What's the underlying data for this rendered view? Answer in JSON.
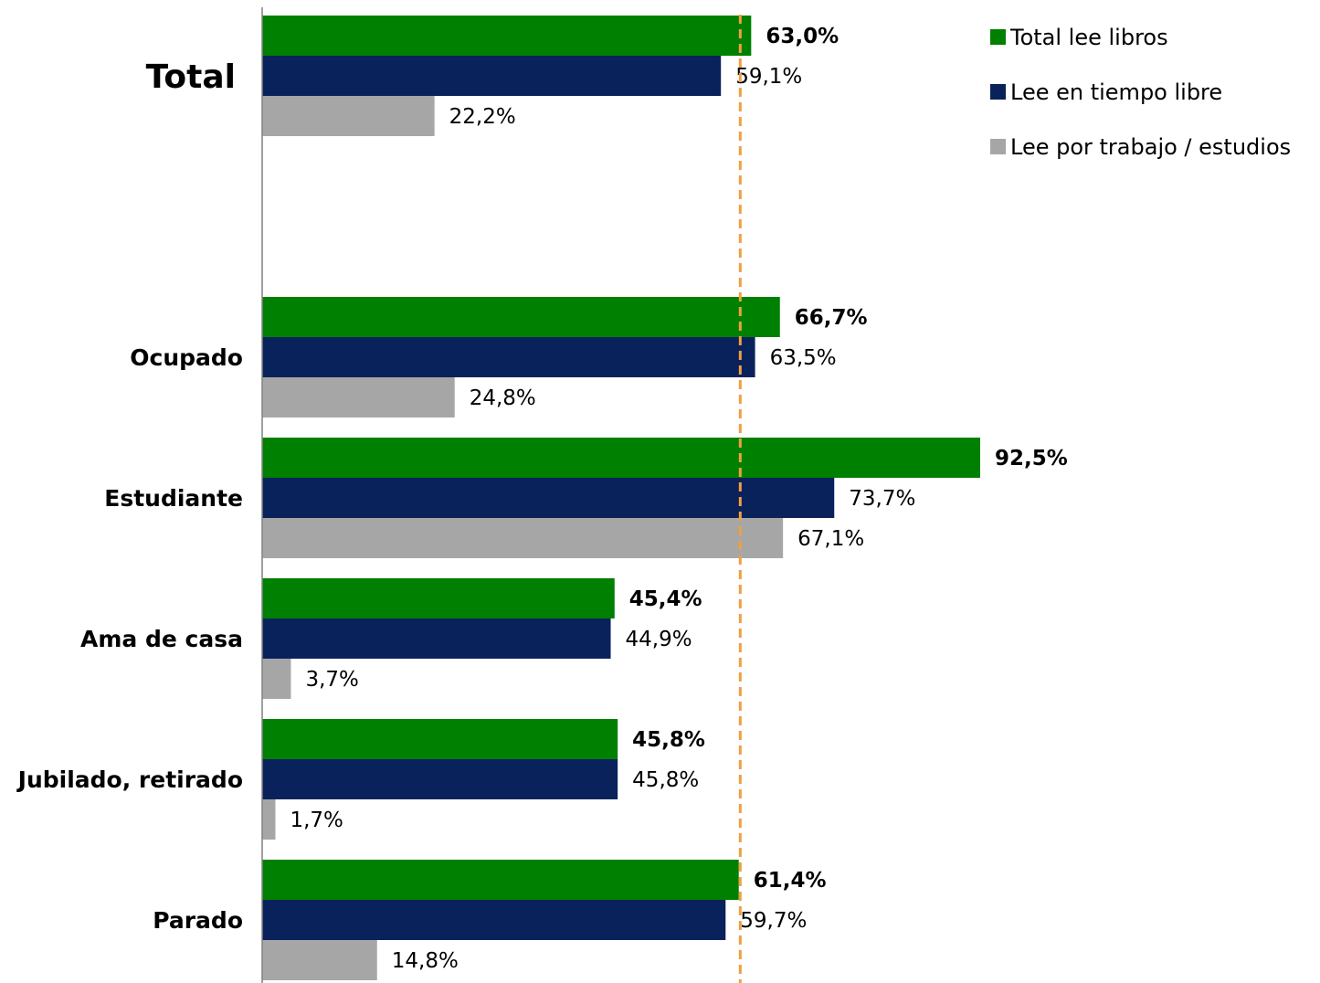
{
  "chart_data": {
    "type": "bar",
    "orientation": "horizontal",
    "categories": [
      "Total",
      "Ocupado",
      "Estudiante",
      "Ama de casa",
      "Jubilado, retirado",
      "Parado"
    ],
    "series": [
      {
        "name": "Total lee libros",
        "color": "#008000",
        "values": [
          63.0,
          66.7,
          92.5,
          45.4,
          45.8,
          61.4
        ],
        "labels": [
          "63,0%",
          "66,7%",
          "92,5%",
          "45,4%",
          "45,8%",
          "61,4%"
        ]
      },
      {
        "name": "Lee en tiempo libre",
        "color": "#0a225c",
        "values": [
          59.1,
          63.5,
          73.7,
          44.9,
          45.8,
          59.7
        ],
        "labels": [
          "59,1%",
          "63,5%",
          "73,7%",
          "44,9%",
          "45,8%",
          "59,7%"
        ]
      },
      {
        "name": "Lee por trabajo / estudios",
        "color": "#a6a6a6",
        "values": [
          22.2,
          24.8,
          67.1,
          3.7,
          1.7,
          14.8
        ],
        "labels": [
          "22,2%",
          "24,8%",
          "67,1%",
          "3,7%",
          "1,7%",
          "14,8%"
        ]
      }
    ],
    "reference_line": {
      "value": 63.0,
      "color": "#f0a040",
      "style": "dashed"
    },
    "xlim": [
      0,
      100
    ],
    "grid": false,
    "legend": {
      "position": "top-right"
    },
    "title": "",
    "xlabel": "",
    "ylabel": ""
  }
}
